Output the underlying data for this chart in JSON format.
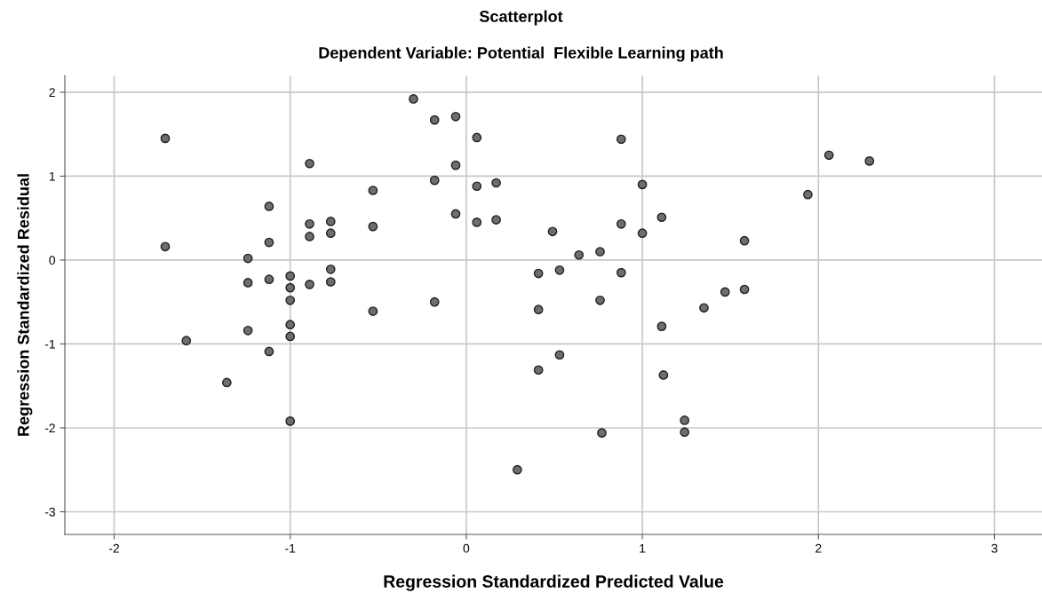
{
  "chart_data": {
    "type": "scatter",
    "title": "Scatterplot",
    "subtitle": "Dependent Variable: Potential  Flexible Learning path",
    "xlabel": "Regression Standardized Predicted Value",
    "ylabel": "Regression Standardized Residual",
    "series": [
      {
        "color": "#6e6e6e",
        "x": [
          -1.71,
          -0.89,
          -0.3,
          -0.53,
          -1.12,
          -0.89,
          -0.77,
          -0.53,
          -0.89,
          -0.77,
          -1.71,
          -1.12,
          -1.24,
          -0.77,
          -1.24,
          -1.12,
          -1.0,
          -1.0,
          -1.0,
          -0.89,
          -0.77,
          -0.53,
          -1.0,
          -1.0,
          -1.24,
          -1.59,
          -1.12,
          -1.36,
          -1.0,
          0.41,
          0.53,
          1.12,
          1.24,
          1.24,
          0.77,
          0.29,
          -0.18,
          -0.06,
          0.06,
          0.88,
          -0.06,
          -0.18,
          0.06,
          0.17,
          1.0,
          -0.06,
          0.06,
          0.17,
          0.49,
          0.88,
          1.11,
          1.0,
          1.58,
          0.64,
          0.76,
          0.41,
          0.53,
          0.88,
          -0.18,
          0.76,
          0.41,
          1.35,
          1.47,
          1.58,
          1.11,
          2.06,
          2.29,
          1.94
        ],
        "values": [
          1.45,
          1.15,
          1.92,
          0.83,
          0.64,
          0.43,
          0.46,
          0.4,
          0.28,
          0.32,
          0.16,
          0.21,
          0.02,
          -0.11,
          -0.27,
          -0.23,
          -0.19,
          -0.33,
          -0.48,
          -0.29,
          -0.26,
          -0.61,
          -0.77,
          -0.91,
          -0.84,
          -0.96,
          -1.09,
          -1.46,
          -1.92,
          -1.31,
          -1.13,
          -1.37,
          -1.91,
          -2.05,
          -2.06,
          -2.5,
          1.67,
          1.71,
          1.46,
          1.44,
          1.13,
          0.95,
          0.88,
          0.92,
          0.9,
          0.55,
          0.45,
          0.48,
          0.34,
          0.43,
          0.51,
          0.32,
          0.23,
          0.06,
          0.1,
          -0.16,
          -0.12,
          -0.15,
          -0.5,
          -0.48,
          -0.59,
          -0.57,
          -0.38,
          -0.35,
          -0.79,
          1.25,
          1.18,
          0.78
        ]
      }
    ],
    "xlim": [
      -2.28,
      3.27
    ],
    "xticks": [
      -2,
      -1,
      0,
      1,
      2,
      3
    ],
    "ylim": [
      -3.27,
      2.2
    ],
    "yticks": [
      -3,
      -2,
      -1,
      0,
      1,
      2
    ],
    "grid": true,
    "marker": "circle"
  }
}
